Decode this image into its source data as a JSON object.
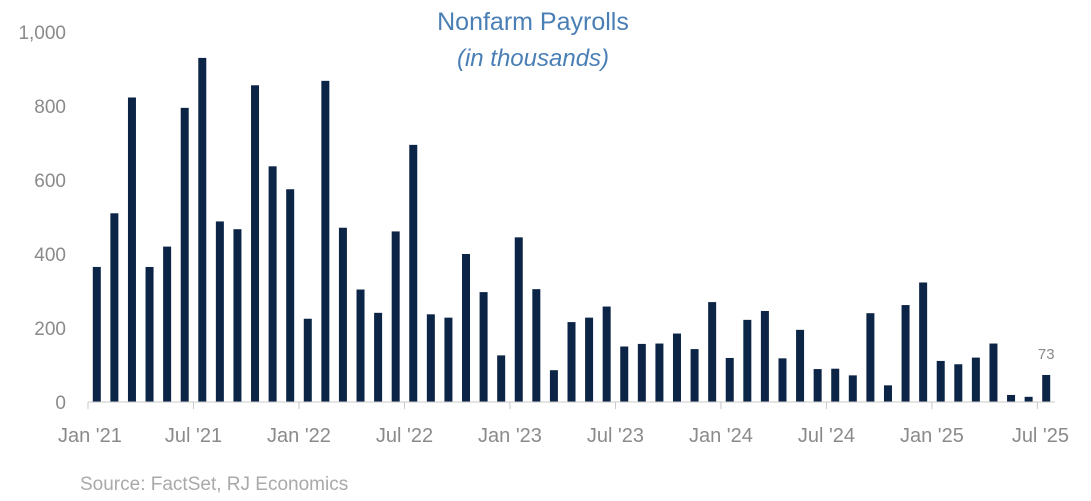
{
  "chart_data": {
    "type": "bar",
    "title": "Nonfarm Payrolls",
    "subtitle": "(in thousands)",
    "source": "Source: FactSet, RJ Economics",
    "color": "#0c2546",
    "ylim": [
      0,
      1000
    ],
    "yticks": [
      "0",
      "200",
      "400",
      "600",
      "800",
      "1,000"
    ],
    "ytick_values": [
      0,
      200,
      400,
      600,
      800,
      1000
    ],
    "xtick_labels": [
      "Jan '21",
      "Jul '21",
      "Jan '22",
      "Jul '22",
      "Jan '23",
      "Jul '23",
      "Jan '24",
      "Jul '24",
      "Jan '25",
      "Jul '25"
    ],
    "xtick_index": [
      0,
      6,
      12,
      18,
      24,
      30,
      36,
      42,
      48,
      54
    ],
    "categories": [
      "Jan '21",
      "Feb '21",
      "Mar '21",
      "Apr '21",
      "May '21",
      "Jun '21",
      "Jul '21",
      "Aug '21",
      "Sep '21",
      "Oct '21",
      "Nov '21",
      "Dec '21",
      "Jan '22",
      "Feb '22",
      "Mar '22",
      "Apr '22",
      "May '22",
      "Jun '22",
      "Jul '22",
      "Aug '22",
      "Sep '22",
      "Oct '22",
      "Nov '22",
      "Dec '22",
      "Jan '23",
      "Feb '23",
      "Mar '23",
      "Apr '23",
      "May '23",
      "Jun '23",
      "Jul '23",
      "Aug '23",
      "Sep '23",
      "Oct '23",
      "Nov '23",
      "Dec '23",
      "Jan '24",
      "Feb '24",
      "Mar '24",
      "Apr '24",
      "May '24",
      "Jun '24",
      "Jul '24",
      "Aug '24",
      "Sep '24",
      "Oct '24",
      "Nov '24",
      "Dec '24",
      "Jan '25",
      "Feb '25",
      "Mar '25",
      "Apr '25",
      "May '25",
      "Jun '25",
      "Jul '25"
    ],
    "values": [
      365,
      510,
      823,
      365,
      420,
      795,
      930,
      488,
      467,
      856,
      637,
      575,
      225,
      868,
      471,
      304,
      241,
      461,
      695,
      237,
      228,
      400,
      297,
      126,
      445,
      305,
      86,
      216,
      228,
      258,
      150,
      157,
      158,
      185,
      143,
      270,
      119,
      222,
      246,
      118,
      195,
      89,
      90,
      72,
      240,
      45,
      262,
      323,
      111,
      102,
      120,
      158,
      19,
      14,
      73
    ],
    "data_labels": [
      {
        "index": 54,
        "text": "73"
      }
    ]
  }
}
